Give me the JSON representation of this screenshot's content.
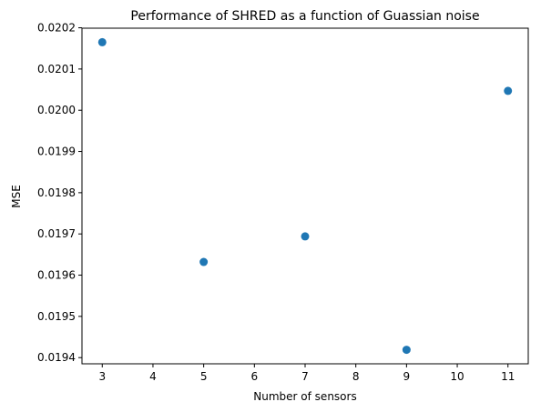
{
  "chart_data": {
    "type": "scatter",
    "title": "Performance of SHRED as a function of Guassian noise",
    "xlabel": "Number of sensors",
    "ylabel": "MSE",
    "x": [
      3,
      5,
      7,
      9,
      11
    ],
    "y": [
      0.020165,
      0.019632,
      0.019694,
      0.019419,
      0.020047
    ],
    "xlim": [
      2.6,
      11.4
    ],
    "ylim": [
      0.019385,
      0.020199
    ],
    "xticks": [
      3,
      4,
      5,
      6,
      7,
      8,
      9,
      10,
      11
    ],
    "xtick_labels": [
      "3",
      "4",
      "5",
      "6",
      "7",
      "8",
      "9",
      "10",
      "11"
    ],
    "yticks": [
      0.0194,
      0.0195,
      0.0196,
      0.0197,
      0.0198,
      0.0199,
      0.02,
      0.0201,
      0.0202
    ],
    "ytick_labels": [
      "0.0194",
      "0.0195",
      "0.0196",
      "0.0197",
      "0.0198",
      "0.0199",
      "0.0200",
      "0.0201",
      "0.0202"
    ],
    "grid": false,
    "marker_color": "#1f77b4"
  }
}
